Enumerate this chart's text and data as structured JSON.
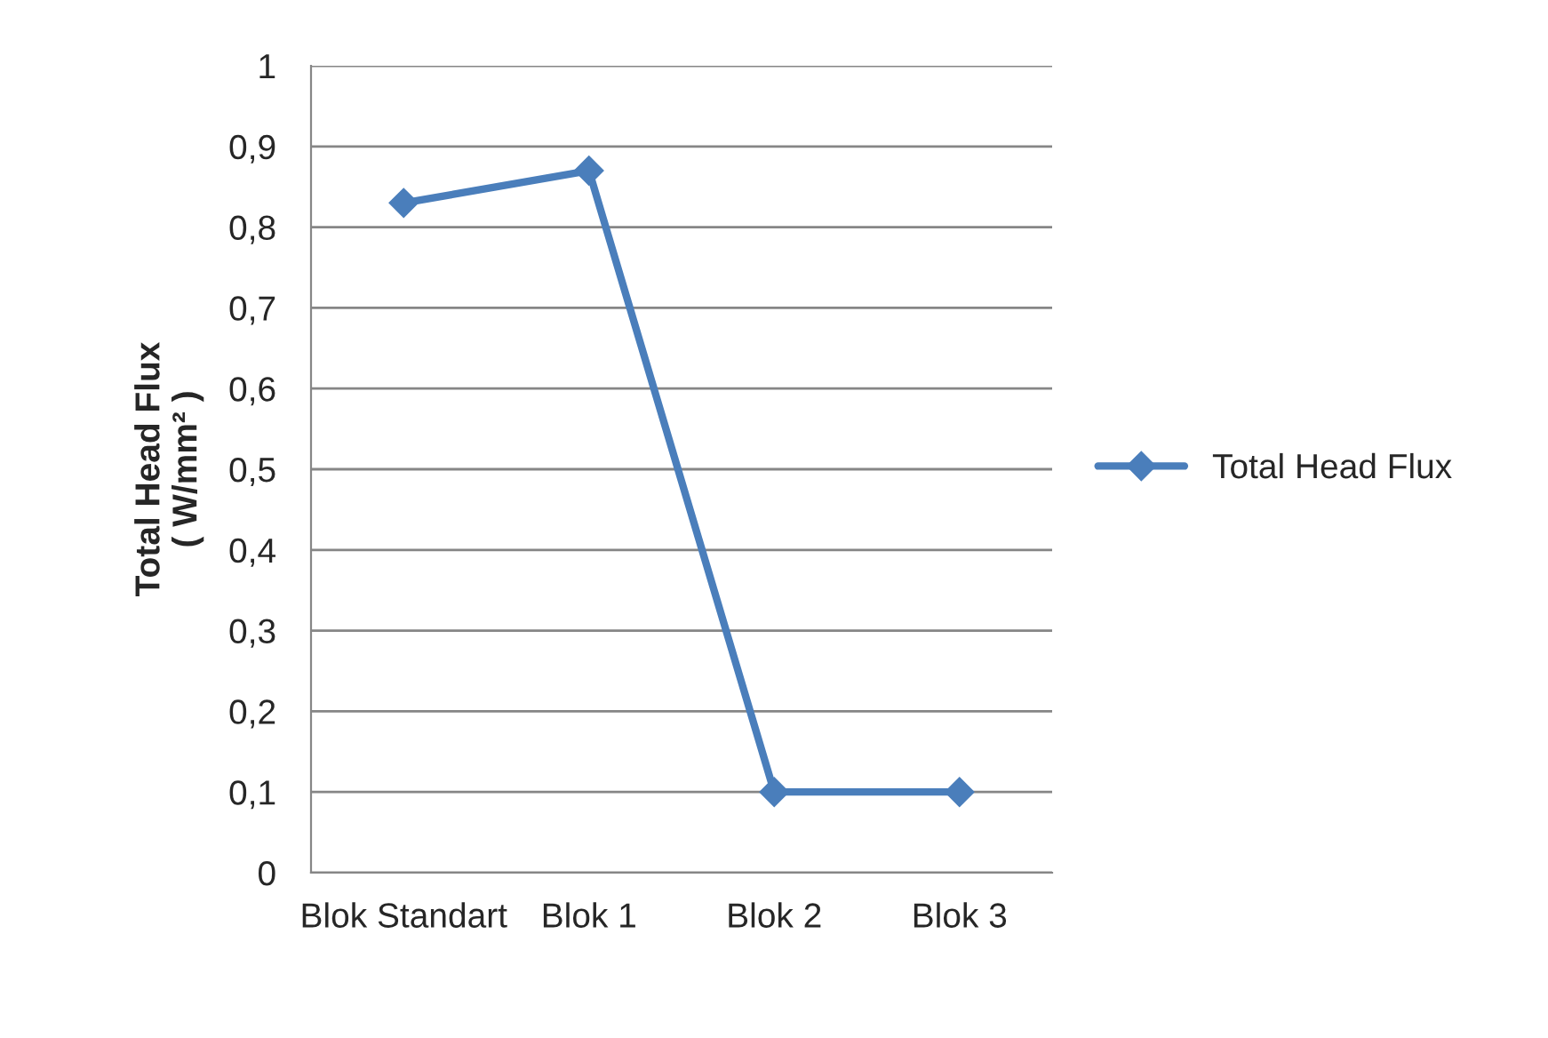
{
  "chart_data": {
    "type": "line",
    "ylabel": "Total Head Flux\n( W/mm² )",
    "categories": [
      "Blok Standart",
      "Blok 1",
      "Blok 2",
      "Blok 3"
    ],
    "series": [
      {
        "name": "Total Head Flux",
        "color": "#4a7ebb",
        "values": [
          0.83,
          0.87,
          0.1,
          0.1
        ]
      }
    ],
    "ylim": [
      0,
      1
    ],
    "yticks": [
      0,
      {
        "value": 0.1,
        "label": "0,1"
      },
      {
        "value": 0.2,
        "label": "0,2"
      },
      {
        "value": 0.3,
        "label": "0,3"
      },
      {
        "value": 0.4,
        "label": "0,4"
      },
      {
        "value": 0.5,
        "label": "0,5"
      },
      {
        "value": 0.6,
        "label": "0,6"
      },
      {
        "value": 0.7,
        "label": "0,7"
      },
      {
        "value": 0.8,
        "label": "0,8"
      },
      {
        "value": 0.9,
        "label": "0,9"
      },
      1
    ],
    "grid": "y",
    "legend": "right",
    "marker": "diamond",
    "line_style": "solid"
  }
}
